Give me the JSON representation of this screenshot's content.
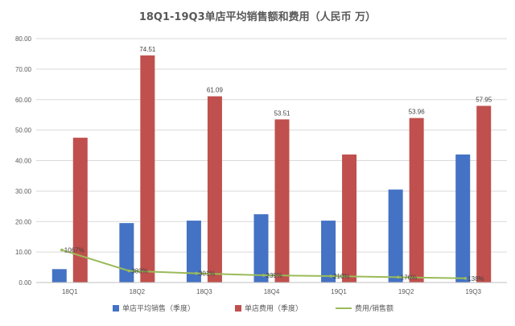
{
  "chart_data": {
    "type": "bar",
    "title": "18Q1-19Q3单店平均销售额和费用（人民币 万）",
    "categories": [
      "18Q1",
      "18Q2",
      "18Q3",
      "18Q4",
      "19Q1",
      "19Q2",
      "19Q3"
    ],
    "ylim": [
      0,
      80
    ],
    "yticks": [
      "0.00",
      "10.00",
      "20.00",
      "30.00",
      "40.00",
      "50.00",
      "60.00",
      "70.00",
      "80.00"
    ],
    "grid": true,
    "legend_position": "bottom",
    "series": [
      {
        "name": "单店平均销售（季度）",
        "type": "bar",
        "color": "#4472C4",
        "values": [
          4.4,
          19.5,
          20.3,
          22.4,
          20.3,
          30.5,
          42.0
        ],
        "labels": [
          "",
          "",
          "",
          "",
          "",
          "",
          ""
        ]
      },
      {
        "name": "单店费用（季度）",
        "type": "bar",
        "color": "#C0504D",
        "values": [
          47.5,
          74.51,
          61.09,
          53.51,
          42.0,
          53.96,
          57.95
        ],
        "labels": [
          "",
          "74.51",
          "61.09",
          "53.51",
          "",
          "53.96",
          "57.95"
        ]
      },
      {
        "name": "费用/销售额",
        "type": "line",
        "color": "#9BBB59",
        "values": [
          10.67,
          3.83,
          3.01,
          2.39,
          2.1,
          1.76,
          1.38
        ],
        "labels": [
          "1067%",
          "383%",
          "301%",
          "239%",
          "210%",
          "176%",
          "138%"
        ]
      }
    ],
    "line_label_text": [
      "1067%",
      "383%",
      "301%",
      "239%",
      "210%",
      "176%",
      "138%"
    ]
  }
}
